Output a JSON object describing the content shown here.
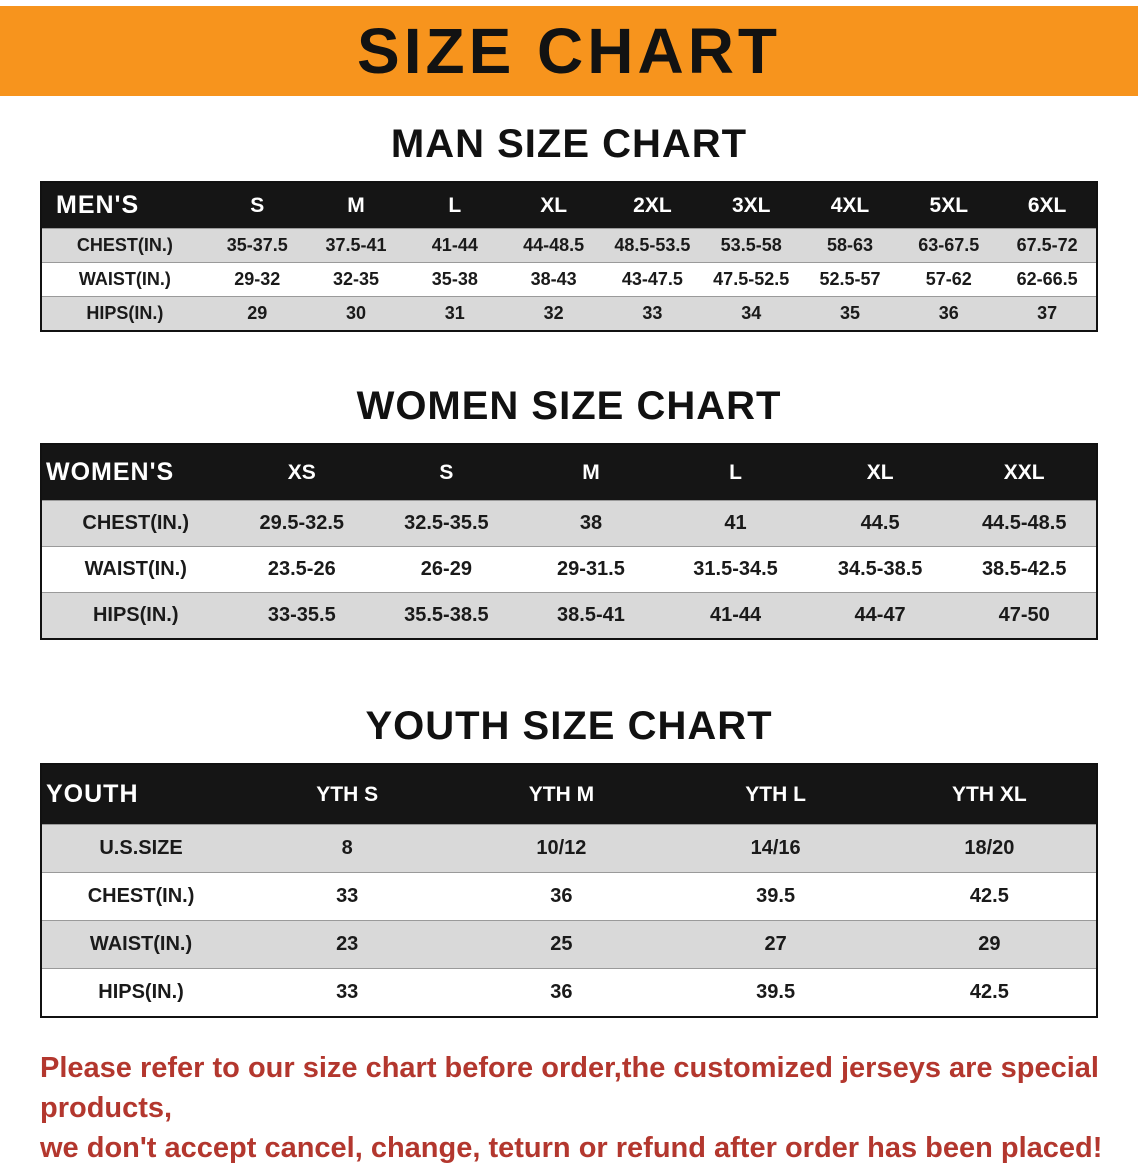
{
  "banner": {
    "title": "SIZE CHART",
    "bg_color": "#F7941D",
    "text_color": "#121212"
  },
  "footer_note": {
    "line1": "Please refer to our size chart before order,the customized jerseys are special products,",
    "line2": "we don't accept cancel, change, teturn or refund after order has been placed!",
    "color": "#B3372E"
  },
  "colors": {
    "table_header_bg": "#151515",
    "table_header_text": "#ffffff",
    "row_shade": "#d9d9d9"
  },
  "chart_data": [
    {
      "type": "table",
      "title": "MAN SIZE CHART",
      "header": [
        "MEN'S",
        "S",
        "M",
        "L",
        "XL",
        "2XL",
        "3XL",
        "4XL",
        "5XL",
        "6XL"
      ],
      "rows": [
        [
          "CHEST(IN.)",
          "35-37.5",
          "37.5-41",
          "41-44",
          "44-48.5",
          "48.5-53.5",
          "53.5-58",
          "58-63",
          "63-67.5",
          "67.5-72"
        ],
        [
          "WAIST(IN.)",
          "29-32",
          "32-35",
          "35-38",
          "38-43",
          "43-47.5",
          "47.5-52.5",
          "52.5-57",
          "57-62",
          "62-66.5"
        ],
        [
          "HIPS(IN.)",
          "29",
          "30",
          "31",
          "32",
          "33",
          "34",
          "35",
          "36",
          "37"
        ]
      ]
    },
    {
      "type": "table",
      "title": "WOMEN SIZE CHART",
      "header": [
        "WOMEN'S",
        "XS",
        "S",
        "M",
        "L",
        "XL",
        "XXL"
      ],
      "rows": [
        [
          "CHEST(IN.)",
          "29.5-32.5",
          "32.5-35.5",
          "38",
          "41",
          "44.5",
          "44.5-48.5"
        ],
        [
          "WAIST(IN.)",
          "23.5-26",
          "26-29",
          "29-31.5",
          "31.5-34.5",
          "34.5-38.5",
          "38.5-42.5"
        ],
        [
          "HIPS(IN.)",
          "33-35.5",
          "35.5-38.5",
          "38.5-41",
          "41-44",
          "44-47",
          "47-50"
        ]
      ]
    },
    {
      "type": "table",
      "title": "YOUTH SIZE CHART",
      "header": [
        "YOUTH",
        "YTH S",
        "YTH M",
        "YTH L",
        "YTH XL"
      ],
      "rows": [
        [
          "U.S.SIZE",
          "8",
          "10/12",
          "14/16",
          "18/20"
        ],
        [
          "CHEST(IN.)",
          "33",
          "36",
          "39.5",
          "42.5"
        ],
        [
          "WAIST(IN.)",
          "23",
          "25",
          "27",
          "29"
        ],
        [
          "HIPS(IN.)",
          "33",
          "36",
          "39.5",
          "42.5"
        ]
      ]
    }
  ]
}
